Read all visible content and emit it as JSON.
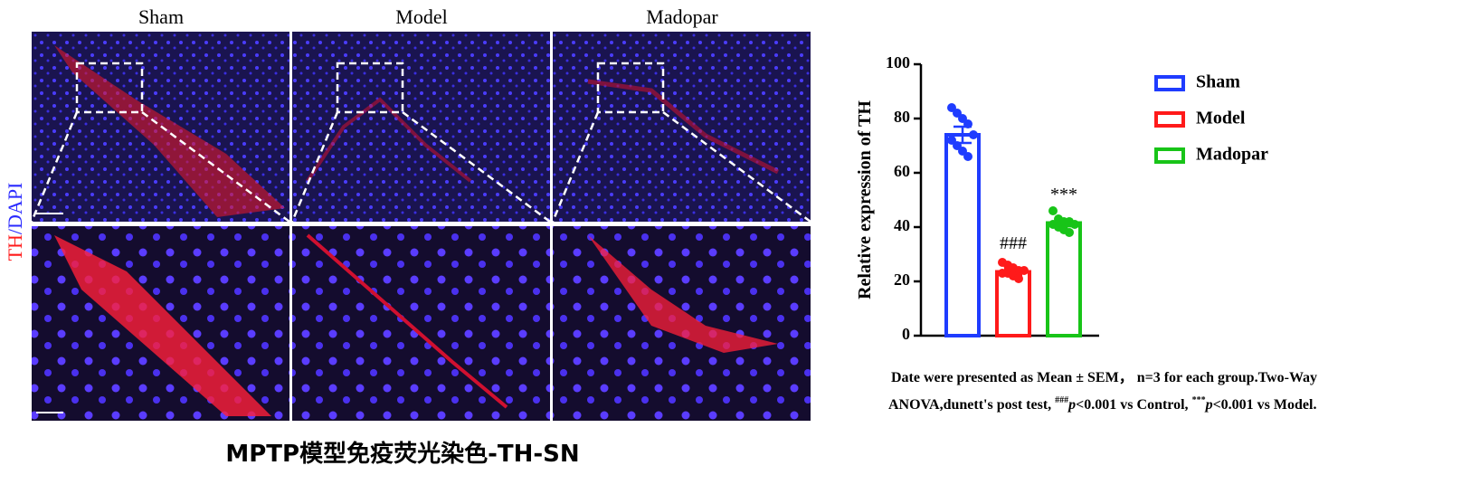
{
  "panel_labels": [
    "Sham",
    "Model",
    "Madopar"
  ],
  "stain_label": {
    "marker": "TH",
    "counterstain": "/DAPI"
  },
  "caption": "MPTP模型免疫荧光染色-TH-SN",
  "chart_data": {
    "type": "bar",
    "y_label": "Relative expression of TH",
    "categories": [
      "Sham",
      "Model",
      "Madopar"
    ],
    "values": [
      74,
      23.5,
      41.5
    ],
    "errors": [
      3,
      1.2,
      1.2
    ],
    "colors": [
      "#1f3cff",
      "#ff1a1a",
      "#18c418"
    ],
    "points": [
      [
        84,
        82,
        80,
        78,
        74,
        72,
        70,
        68,
        66
      ],
      [
        27,
        26,
        25,
        24,
        24,
        23,
        23,
        22,
        21
      ],
      [
        46,
        43,
        42,
        42,
        41,
        41,
        40,
        39,
        38
      ]
    ],
    "annotations": [
      null,
      "###",
      "***"
    ],
    "ylim": [
      0,
      100
    ],
    "yticks": [
      0,
      20,
      40,
      60,
      80,
      100
    ],
    "note": [
      "Date were presented as Mean ± SEM， n=3 for each group.Two-Way",
      "ANOVA,dunett's post test, ",
      "###",
      "p",
      "<0.001 vs Control, ",
      "***",
      "p",
      "<0.001 vs Model."
    ]
  }
}
